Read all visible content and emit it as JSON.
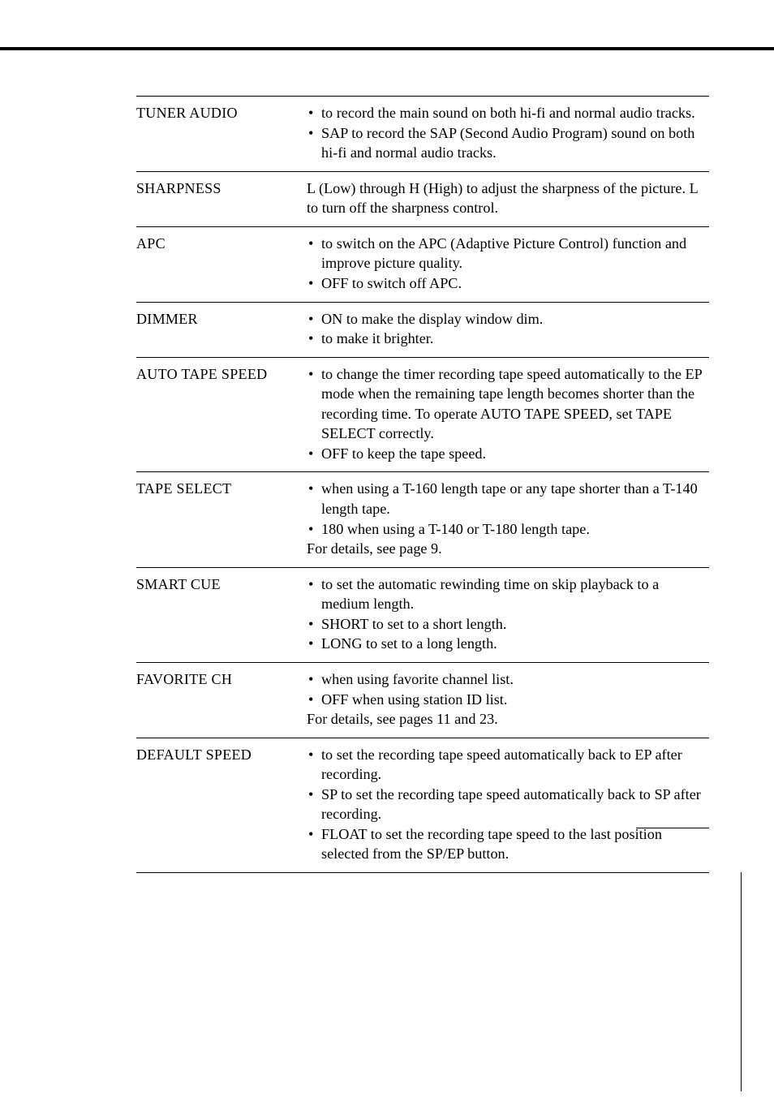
{
  "rows": [
    {
      "label": "TUNER AUDIO",
      "items": [
        "to record the main sound on both hi-fi and normal audio tracks.",
        "SAP to record the SAP (Second Audio Program) sound on both hi-fi and normal audio tracks."
      ]
    },
    {
      "label": "SHARPNESS",
      "text": "L (Low) through H (High) to adjust the sharpness of the picture.  L to turn off the sharpness control."
    },
    {
      "label": "APC",
      "items": [
        "to switch on the APC (Adaptive Picture Control) function and improve picture quality.",
        "OFF to switch off APC."
      ]
    },
    {
      "label": "DIMMER",
      "items": [
        "ON to make the display window dim.",
        "to make it brighter."
      ]
    },
    {
      "label": "AUTO TAPE SPEED",
      "items": [
        "to change the timer recording tape speed automatically to the EP mode when the remaining tape length becomes shorter than the recording time.  To operate AUTO TAPE SPEED, set TAPE SELECT correctly.",
        "OFF to keep the tape speed."
      ]
    },
    {
      "label": "TAPE SELECT",
      "items": [
        "when using a T-160 length tape or any tape shorter than a T-140 length tape.",
        "180 when using a T-140 or T-180 length tape."
      ],
      "after": "For details, see page 9."
    },
    {
      "label": "SMART CUE",
      "items": [
        "to set the automatic rewinding time on skip playback to a medium length.",
        "SHORT to set to a short length.",
        "LONG to set to a long length."
      ]
    },
    {
      "label": "FAVORITE CH",
      "items": [
        "when using favorite channel list.",
        "OFF when using station ID list."
      ],
      "after": "For details, see pages 11 and 23."
    },
    {
      "label": "DEFAULT SPEED",
      "items": [
        "to set the recording tape speed automatically back to EP after recording.",
        "SP to set the recording tape speed automatically back to SP after recording.",
        "FLOAT to set the recording tape speed to the last position selected from the SP/EP button."
      ]
    }
  ]
}
